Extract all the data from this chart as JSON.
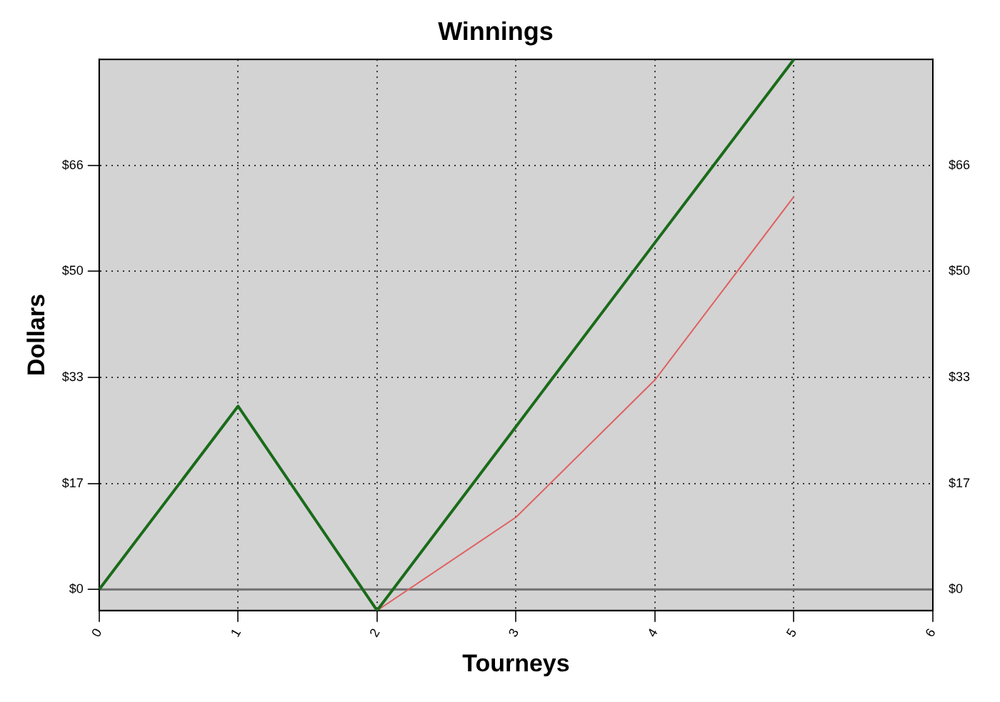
{
  "chart_data": {
    "type": "line",
    "title": "Winnings",
    "xlabel": "Tourneys",
    "ylabel": "Dollars",
    "series": [
      {
        "color": "#1a6b1a",
        "x": [
          0,
          1,
          2,
          3,
          4,
          5
        ],
        "values": [
          0,
          28.7,
          -3.3,
          25.5,
          54.3,
          83
        ]
      },
      {
        "color": "#e06060",
        "x": [
          2,
          3,
          4,
          5
        ],
        "values": [
          -3.3,
          11.3,
          32.8,
          61.5
        ]
      }
    ],
    "xlim": [
      0,
      6
    ],
    "xticks": [
      0,
      1,
      2,
      3,
      4,
      5,
      6
    ],
    "ylim": [
      -3.3,
      83
    ],
    "yticks": [
      {
        "value": 0,
        "label": "$0"
      },
      {
        "value": 16.6,
        "label": "$17"
      },
      {
        "value": 33.2,
        "label": "$33"
      },
      {
        "value": 49.8,
        "label": "$50"
      },
      {
        "value": 66.4,
        "label": "$66"
      }
    ],
    "y2lim": [
      -3.3,
      83
    ],
    "y2ticks": [
      {
        "value": 0,
        "label": "$0"
      },
      {
        "value": 16.6,
        "label": "$17"
      },
      {
        "value": 33.2,
        "label": "$33"
      },
      {
        "value": 49.8,
        "label": "$50"
      },
      {
        "value": 66.4,
        "label": "$66"
      }
    ],
    "ref_lines": [
      {
        "axis": "y",
        "value": 0,
        "color": "#707070",
        "line_style": "solid"
      }
    ],
    "grid": true,
    "legend": false,
    "marker": "none",
    "line_style": "solid"
  }
}
